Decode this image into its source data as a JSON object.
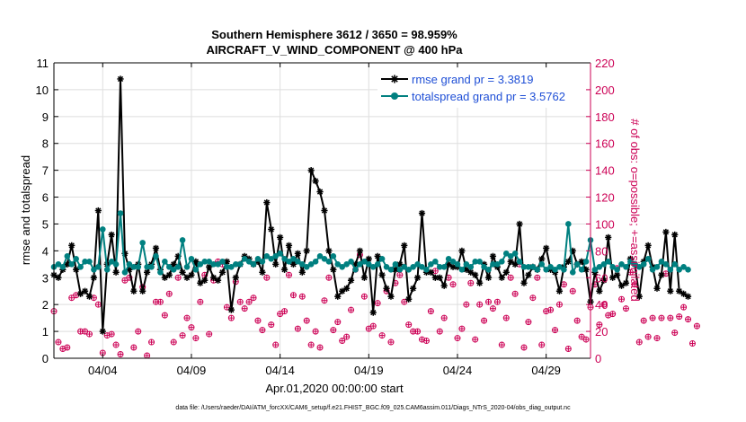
{
  "chart_data": {
    "type": "line",
    "title": [
      "Southern Hemisphere 3612 / 3650 = 98.959%",
      "AIRCRAFT_V_WIND_COMPONENT @ 400 hPa"
    ],
    "xlabel": "Apr.01,2020 00:00:00 start",
    "ylabel": "rmse and totalspread",
    "ylabel_right": "# of obs: o=possible; +=assimilated",
    "x_tick_labels": [
      "04/04",
      "04/09",
      "04/14",
      "04/19",
      "04/24",
      "04/29"
    ],
    "x_tick_days": [
      3,
      8,
      13,
      18,
      23,
      28
    ],
    "xlim": [
      0.25,
      30.5
    ],
    "ylim": [
      0,
      11
    ],
    "ylim_right": [
      0,
      220
    ],
    "y_ticks": [
      0,
      1,
      2,
      3,
      4,
      5,
      6,
      7,
      8,
      9,
      10,
      11
    ],
    "y_ticks_right": [
      0,
      20,
      40,
      60,
      80,
      100,
      120,
      140,
      160,
      180,
      200,
      220
    ],
    "grid": true,
    "legend_position": "top-right",
    "x_step_days": 0.25,
    "x_start_day": 0.25,
    "series": [
      {
        "name": "rmse grand pr = 3.3819",
        "color": "#000000",
        "marker": "star",
        "values": [
          3.1,
          3.0,
          3.3,
          3.5,
          4.2,
          3.3,
          2.4,
          2.5,
          2.3,
          3.0,
          5.5,
          1.0,
          3.5,
          4.6,
          3.2,
          10.4,
          3.9,
          3.3,
          2.5,
          3.5,
          2.5,
          3.2,
          3.5,
          4.1,
          3.3,
          3.0,
          3.1,
          3.5,
          3.8,
          3.2,
          3.0,
          3.1,
          3.6,
          2.8,
          2.9,
          3.4,
          3.0,
          2.9,
          3.2,
          3.6,
          1.8,
          3.0,
          3.5,
          3.8,
          3.7,
          3.5,
          3.6,
          3.2,
          5.8,
          4.8,
          3.5,
          4.5,
          3.3,
          4.2,
          3.5,
          3.9,
          3.2,
          4.0,
          7.0,
          6.6,
          6.2,
          5.5,
          4.0,
          3.3,
          2.3,
          2.5,
          2.6,
          2.9,
          3.5,
          4.0,
          3.0,
          3.7,
          1.7,
          3.8,
          3.1,
          2.6,
          2.3,
          3.3,
          3.5,
          4.2,
          2.2,
          2.6,
          3.0,
          5.4,
          3.2,
          3.2,
          3.0,
          3.0,
          2.7,
          3.5,
          3.4,
          3.4,
          4.0,
          3.3,
          3.2,
          3.1,
          2.8,
          3.5,
          3.0,
          3.8,
          3.4,
          3.0,
          3.2,
          3.6,
          3.5,
          5.0,
          2.8,
          3.1,
          3.4,
          3.3,
          3.7,
          4.1,
          3.3,
          3.2,
          2.5,
          3.4,
          3.6,
          4.0,
          3.5,
          3.6,
          3.3,
          2.1,
          3.2,
          2.5,
          2.9,
          4.5,
          3.0,
          3.1,
          2.7,
          2.8,
          3.7,
          3.5,
          2.3,
          3.6,
          4.2,
          3.4,
          2.6,
          3.1,
          4.7,
          2.5,
          4.6,
          2.5,
          2.4,
          2.3
        ]
      },
      {
        "name": "totalspread grand pr = 3.5762",
        "color": "#008080",
        "marker": "circle",
        "values": [
          3.4,
          3.5,
          3.4,
          3.8,
          3.5,
          3.7,
          3.4,
          3.6,
          3.6,
          3.3,
          3.4,
          4.8,
          3.3,
          3.6,
          3.5,
          5.4,
          3.2,
          3.5,
          3.4,
          3.4,
          4.3,
          3.4,
          3.4,
          3.8,
          3.2,
          3.6,
          3.4,
          3.3,
          3.4,
          4.4,
          3.4,
          3.7,
          3.3,
          3.5,
          3.6,
          3.6,
          3.5,
          3.5,
          3.6,
          3.4,
          3.4,
          3.5,
          3.5,
          3.7,
          3.6,
          3.5,
          3.7,
          3.6,
          3.8,
          3.7,
          3.8,
          3.9,
          3.7,
          3.6,
          3.7,
          3.6,
          3.5,
          3.4,
          3.5,
          3.6,
          3.8,
          3.7,
          3.6,
          3.8,
          3.5,
          3.4,
          3.5,
          3.6,
          3.3,
          3.5,
          3.6,
          3.5,
          3.4,
          3.5,
          3.7,
          3.4,
          3.3,
          3.5,
          3.3,
          3.4,
          3.3,
          3.4,
          3.5,
          3.4,
          3.3,
          3.5,
          3.6,
          3.4,
          3.4,
          3.7,
          3.6,
          3.5,
          3.3,
          3.5,
          3.4,
          3.6,
          3.6,
          3.4,
          3.3,
          3.5,
          3.5,
          3.6,
          3.9,
          3.8,
          3.9,
          3.6,
          3.4,
          3.4,
          3.4,
          3.3,
          3.5,
          3.3,
          3.4,
          3.3,
          3.4,
          3.3,
          5.0,
          3.2,
          3.5,
          3.3,
          3.6,
          4.4,
          3.3,
          3.4,
          3.5,
          3.6,
          3.4,
          3.3,
          3.5,
          3.4,
          3.6,
          3.5,
          3.4,
          3.5,
          3.7,
          3.3,
          3.4,
          3.6,
          3.5,
          3.3,
          3.5,
          3.3,
          3.4,
          3.3
        ]
      }
    ],
    "obs_possible": [
      35,
      12,
      7,
      8,
      45,
      47,
      20,
      20,
      18,
      45,
      40,
      4,
      17,
      18,
      10,
      3,
      58,
      60,
      8,
      20,
      53,
      2,
      12,
      42,
      42,
      32,
      48,
      12,
      60,
      17,
      30,
      23,
      15,
      42,
      62,
      18,
      58,
      72,
      70,
      38,
      30,
      57,
      42,
      37,
      42,
      45,
      28,
      21,
      60,
      25,
      10,
      33,
      35,
      62,
      47,
      22,
      46,
      28,
      10,
      20,
      8,
      43,
      60,
      21,
      27,
      13,
      16,
      36,
      66,
      77,
      46,
      22,
      24,
      41,
      17,
      50,
      12,
      56,
      62,
      42,
      25,
      20,
      20,
      14,
      13,
      35,
      65,
      20,
      30,
      60,
      55,
      15,
      22,
      40,
      56,
      14,
      40,
      28,
      42,
      37,
      42,
      10,
      30,
      60,
      48,
      70,
      8,
      27,
      45,
      60,
      10,
      35,
      36,
      21,
      40,
      55,
      7,
      50,
      28,
      16,
      14,
      38,
      55,
      25,
      40,
      32,
      33,
      67,
      44,
      37,
      64,
      55,
      12,
      28,
      16,
      30,
      15,
      30,
      63,
      30,
      19,
      31,
      38,
      29,
      11,
      24
    ]
  },
  "footer": "data file: /Users/raeder/DAI/ATM_forcXX/CAM6_setup/f.e21.FHIST_BGC.f09_025.CAM6assim.011/Diags_NTrS_2020-04/obs_diag_output.nc"
}
